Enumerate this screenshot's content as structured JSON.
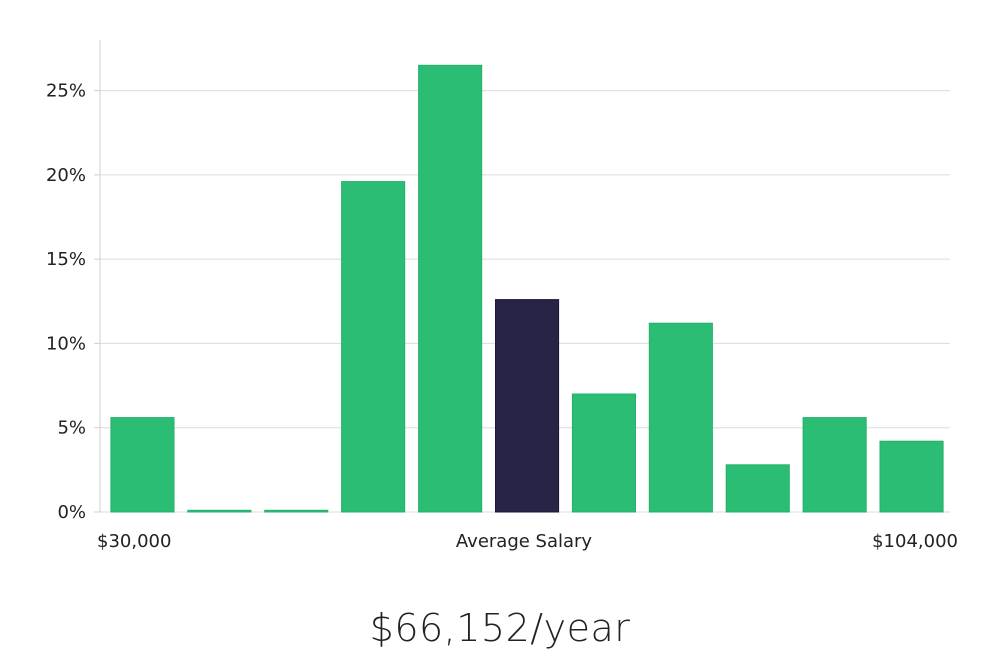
{
  "chart_data": {
    "type": "bar",
    "categories": [
      "1",
      "2",
      "3",
      "4",
      "5",
      "6",
      "7",
      "8",
      "9",
      "10",
      "11"
    ],
    "values": [
      5.6,
      0.1,
      0.1,
      19.6,
      26.5,
      12.6,
      7.0,
      11.2,
      2.8,
      5.6,
      4.2
    ],
    "highlight_index": 5,
    "ylim": [
      0,
      28
    ],
    "yticks": [
      0,
      5,
      10,
      15,
      20,
      25
    ],
    "ytick_suffix": "%",
    "x_labels": {
      "left": "$30,000",
      "center": "Average Salary",
      "right": "$104,000"
    },
    "grid": true,
    "colors": {
      "bar": "#2bbd74",
      "highlight": "#272446",
      "grid": "#dcdcdc",
      "axis": "#d0d0d0"
    }
  },
  "summary": {
    "average_salary": "$66,152/year"
  }
}
